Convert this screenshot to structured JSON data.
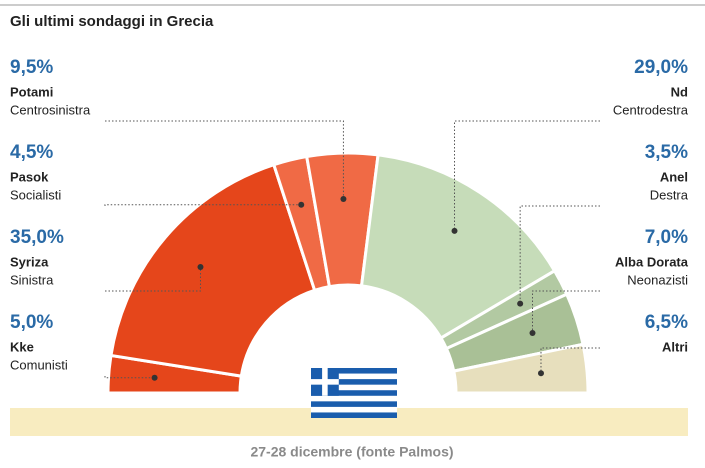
{
  "chart_data": {
    "type": "half-donut",
    "title": "Gli ultimi sondaggi in Grecia",
    "note": "27-28 dicembre (fonte Palmos)",
    "categories": [
      "Kke",
      "Syriza",
      "Pasok",
      "Potami",
      "Nd",
      "Anel",
      "Alba Dorata",
      "Altri"
    ],
    "descriptions": [
      "Comunisti",
      "Sinistra",
      "Socialisti",
      "Centrosinistra",
      "Centrodestra",
      "Destra",
      "Neonazisti",
      null
    ],
    "values": [
      5.0,
      35.0,
      4.5,
      9.5,
      29.0,
      3.5,
      7.0,
      6.5
    ],
    "value_labels": [
      "5,0%",
      "35,0%",
      "4,5%",
      "9,5%",
      "29,0%",
      "3,5%",
      "7,0%",
      "6,5%"
    ],
    "colors": [
      "#e5461b",
      "#e5461b",
      "#f06a45",
      "#f06a45",
      "#c6dcb9",
      "#b2c9a2",
      "#a9c096",
      "#e7dfbd"
    ]
  }
}
